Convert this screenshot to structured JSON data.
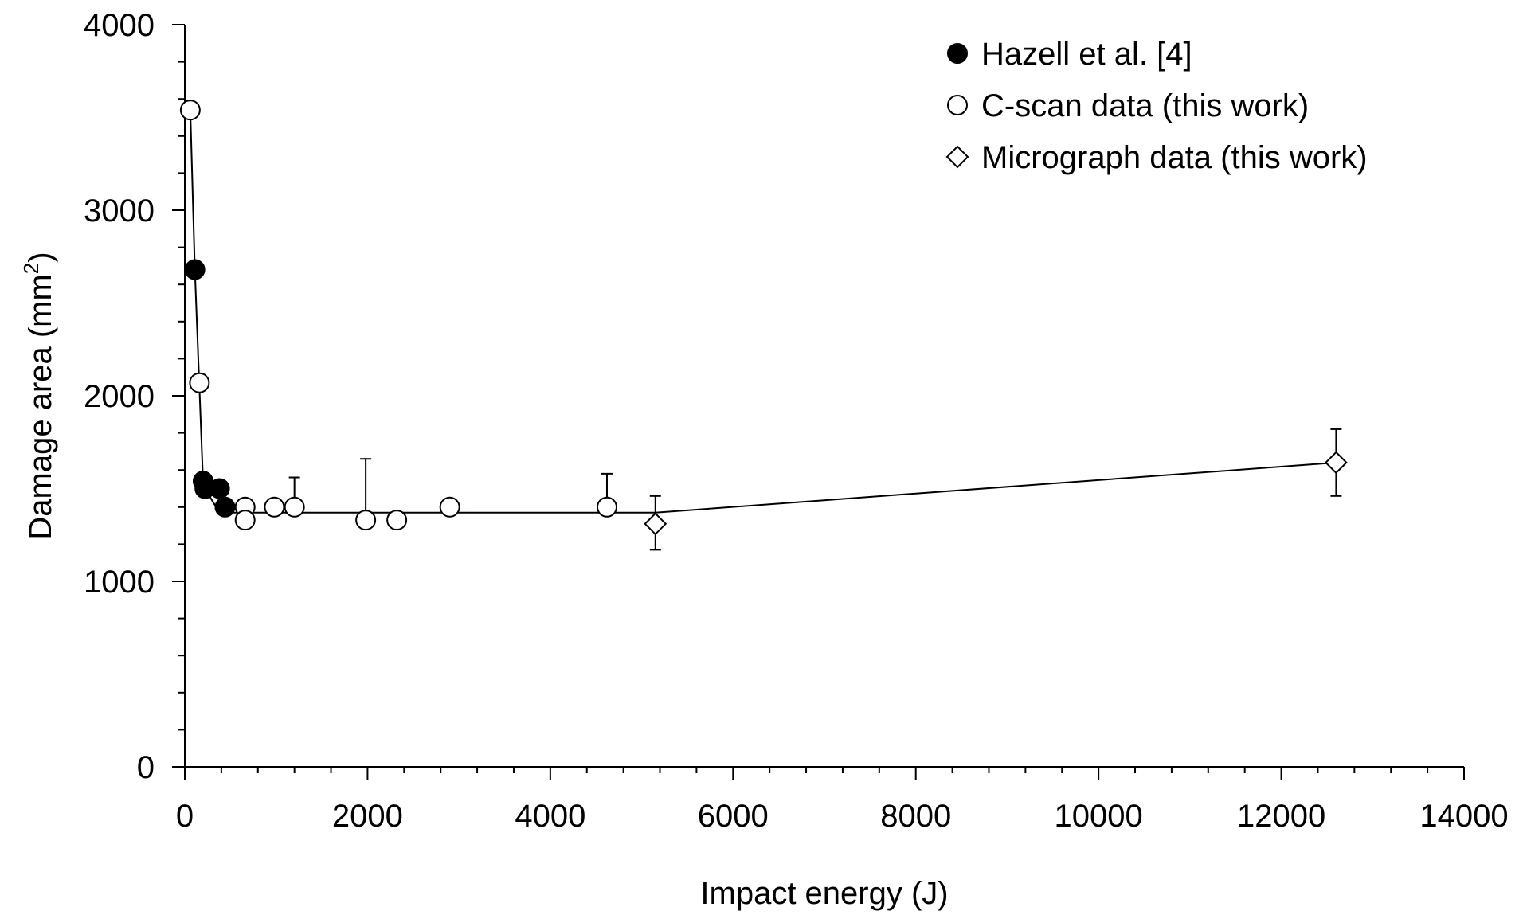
{
  "chart_data": {
    "type": "scatter",
    "xlabel": "Impact energy (J)",
    "ylabel_main": "Damage area (mm",
    "ylabel_sup": "2",
    "ylabel_close": ")",
    "xlim": [
      0,
      14000
    ],
    "ylim": [
      0,
      4000
    ],
    "x_ticks": [
      "0",
      "2000",
      "4000",
      "6000",
      "8000",
      "10000",
      "12000",
      "14000"
    ],
    "x_tick_values": [
      0,
      2000,
      4000,
      6000,
      8000,
      10000,
      12000,
      14000
    ],
    "y_ticks": [
      "0",
      "1000",
      "2000",
      "3000",
      "4000"
    ],
    "y_tick_values": [
      0,
      1000,
      2000,
      3000,
      4000
    ],
    "grid": false,
    "legend_position": "top-right",
    "series": [
      {
        "name": "Hazell et al. [4]",
        "marker": "filled-circle",
        "points": [
          {
            "x": 110,
            "y": 2680
          },
          {
            "x": 200,
            "y": 1540
          },
          {
            "x": 220,
            "y": 1500
          },
          {
            "x": 380,
            "y": 1500
          },
          {
            "x": 440,
            "y": 1400
          }
        ]
      },
      {
        "name": "C-scan data (this work)",
        "marker": "open-circle",
        "points": [
          {
            "x": 60,
            "y": 3540
          },
          {
            "x": 160,
            "y": 2070
          },
          {
            "x": 660,
            "y": 1400
          },
          {
            "x": 660,
            "y": 1330
          },
          {
            "x": 980,
            "y": 1400
          },
          {
            "x": 1200,
            "y": 1400,
            "err_up": 1560
          },
          {
            "x": 1980,
            "y": 1330,
            "err_up": 1660
          },
          {
            "x": 2320,
            "y": 1330
          },
          {
            "x": 2900,
            "y": 1400
          },
          {
            "x": 4620,
            "y": 1400,
            "err_up": 1580
          }
        ]
      },
      {
        "name": "Micrograph data (this work)",
        "marker": "open-diamond",
        "points": [
          {
            "x": 5150,
            "y": 1310,
            "err_up": 1460,
            "err_down": 1170
          },
          {
            "x": 12600,
            "y": 1640,
            "err_up": 1820,
            "err_down": 1460
          }
        ]
      }
    ],
    "fit_line": [
      {
        "x": 60,
        "y": 3540
      },
      {
        "x": 110,
        "y": 2680
      },
      {
        "x": 200,
        "y": 1540
      },
      {
        "x": 220,
        "y": 1500
      },
      {
        "x": 380,
        "y": 1370
      },
      {
        "x": 5150,
        "y": 1370
      },
      {
        "x": 12600,
        "y": 1640
      }
    ],
    "colors": {
      "axis": "#000000",
      "marker": "#000000",
      "line": "#000000"
    }
  }
}
